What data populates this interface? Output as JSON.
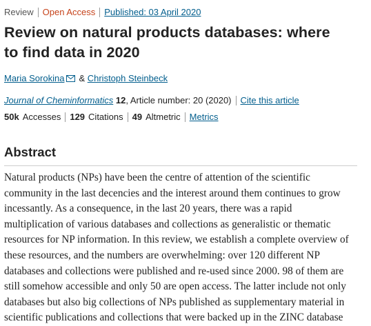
{
  "header": {
    "article_type": "Review",
    "access": "Open Access",
    "published": "Published: 03 April 2020"
  },
  "title": [
    "Review on natural products databases: where",
    "to find data in 2020"
  ],
  "authors": {
    "names": [
      "Maria Sorokina",
      "Christoph Steinbeck"
    ],
    "separator": "&"
  },
  "citation": {
    "journal": "Journal of Cheminformatics",
    "volume": "12",
    "details": ", Article number: 20 (2020)",
    "cite_link": "Cite this article"
  },
  "metrics": {
    "items": [
      {
        "value": "50k",
        "label": "Accesses"
      },
      {
        "value": "129",
        "label": "Citations"
      },
      {
        "value": "49",
        "label": "Altmetric"
      }
    ],
    "link": "Metrics"
  },
  "abstract": {
    "heading": "Abstract",
    "lines": [
      "Natural products (NPs) have been the centre of attention of the scientific",
      "community in the last decencies and the interest around them continues to grow",
      "incessantly. As a consequence, in the last 20 years, there was a rapid",
      "multiplication of various databases and collections as generalistic or thematic",
      "resources for NP information. In this review, we establish a complete overview of",
      "these resources, and the numbers are overwhelming: over 120 different NP",
      "databases and collections were published and re-used since 2000. 98 of them are",
      "still somehow accessible and only 50 are open access. The latter include not only",
      "databases but also big collections of NPs published as supplementary material in",
      "scientific publications and collections that were backed up in the ZINC database"
    ]
  }
}
